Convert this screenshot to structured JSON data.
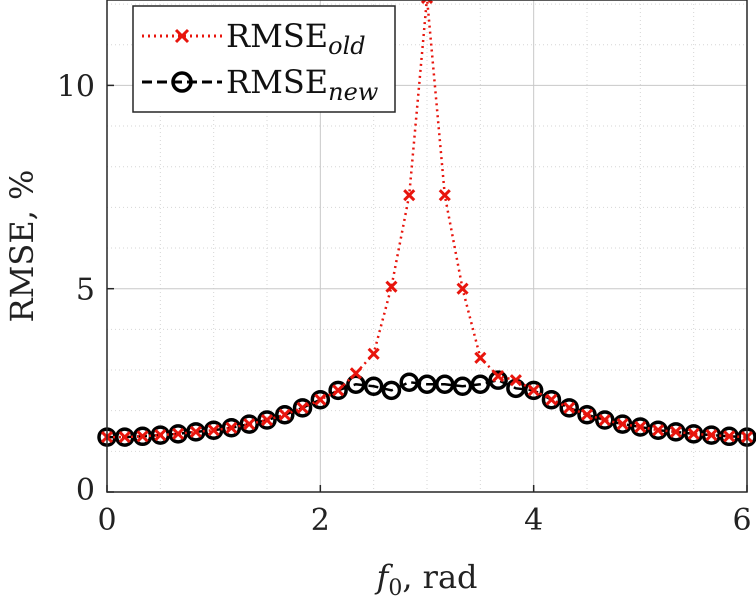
{
  "chart_data": {
    "type": "line",
    "xlabel_var": "f",
    "xlabel_sub": "0",
    "xlabel_unit": ", rad",
    "ylabel": "RMSE, %",
    "xlim": [
      0,
      6
    ],
    "ylim": [
      0,
      12.1
    ],
    "xticks": [
      0,
      2,
      4,
      6
    ],
    "yticks": [
      0,
      5,
      10
    ],
    "grid": true,
    "minor_grid": true,
    "legend_position": "top-left",
    "series": [
      {
        "name_main": "RMSE",
        "name_sub": "old",
        "color": "#e8150d",
        "marker": "x",
        "line_style": "dotted",
        "x": [
          0,
          0.1667,
          0.3333,
          0.5,
          0.6667,
          0.8333,
          1.0,
          1.1667,
          1.3333,
          1.5,
          1.6667,
          1.8333,
          2.0,
          2.1667,
          2.3333,
          2.5,
          2.6667,
          2.8333,
          3.0,
          3.1667,
          3.3333,
          3.5,
          3.6667,
          3.8333,
          4.0,
          4.1667,
          4.3333,
          4.5,
          4.6667,
          4.8333,
          5.0,
          5.1667,
          5.3333,
          5.5,
          5.6667,
          5.8333,
          6.0
        ],
        "y": [
          1.35,
          1.35,
          1.37,
          1.4,
          1.43,
          1.48,
          1.52,
          1.58,
          1.67,
          1.77,
          1.9,
          2.07,
          2.27,
          2.5,
          2.92,
          3.4,
          5.05,
          7.3,
          12.15,
          7.3,
          5.0,
          3.3,
          2.85,
          2.75,
          2.5,
          2.27,
          2.07,
          1.9,
          1.77,
          1.67,
          1.6,
          1.52,
          1.48,
          1.43,
          1.4,
          1.37,
          1.35
        ]
      },
      {
        "name_main": "RMSE",
        "name_sub": "new",
        "color": "#000000",
        "marker": "o",
        "line_style": "dashed",
        "x": [
          0,
          0.1667,
          0.3333,
          0.5,
          0.6667,
          0.8333,
          1.0,
          1.1667,
          1.3333,
          1.5,
          1.6667,
          1.8333,
          2.0,
          2.1667,
          2.3333,
          2.5,
          2.6667,
          2.8333,
          3.0,
          3.1667,
          3.3333,
          3.5,
          3.6667,
          3.8333,
          4.0,
          4.1667,
          4.3333,
          4.5,
          4.6667,
          4.8333,
          5.0,
          5.1667,
          5.3333,
          5.5,
          5.6667,
          5.8333,
          6.0
        ],
        "y": [
          1.35,
          1.35,
          1.37,
          1.4,
          1.43,
          1.48,
          1.52,
          1.58,
          1.67,
          1.77,
          1.9,
          2.07,
          2.27,
          2.5,
          2.65,
          2.6,
          2.5,
          2.7,
          2.65,
          2.65,
          2.6,
          2.65,
          2.75,
          2.55,
          2.5,
          2.27,
          2.07,
          1.9,
          1.77,
          1.67,
          1.6,
          1.52,
          1.48,
          1.43,
          1.4,
          1.37,
          1.35
        ]
      }
    ]
  }
}
